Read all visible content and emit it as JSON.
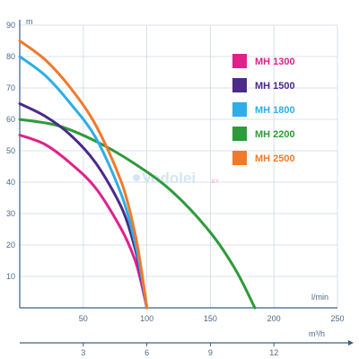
{
  "chart_data": {
    "type": "line",
    "y_unit": "m",
    "x_unit": "l/min",
    "x2_unit": "m³/h",
    "ylim": [
      0,
      90
    ],
    "xlim": [
      0,
      250
    ],
    "x2lim": [
      0,
      15
    ],
    "y_ticks": [
      "10",
      "20",
      "30",
      "40",
      "50",
      "60",
      "70",
      "80",
      "90"
    ],
    "x_ticks": [
      "50",
      "100",
      "150",
      "200",
      "250"
    ],
    "x2_ticks": [
      "3",
      "6",
      "9",
      "12"
    ],
    "grid": true,
    "legend_position": "right",
    "series": [
      {
        "name": "MH 1300",
        "color": "#e0218a",
        "x": [
          0,
          20,
          40,
          60,
          80,
          90,
          95,
          100
        ],
        "y": [
          55,
          52,
          46,
          38,
          25,
          16,
          9,
          0
        ]
      },
      {
        "name": "MH 1500",
        "color": "#4b2a8a",
        "x": [
          0,
          20,
          40,
          60,
          80,
          90,
          95,
          100
        ],
        "y": [
          65,
          61,
          55,
          46,
          32,
          20,
          11,
          0
        ]
      },
      {
        "name": "MH 1800",
        "color": "#2eaee6",
        "x": [
          0,
          20,
          40,
          60,
          80,
          90,
          95,
          100
        ],
        "y": [
          80,
          74,
          65,
          54,
          36,
          22,
          12,
          0
        ]
      },
      {
        "name": "MH 2200",
        "color": "#2e9a3a",
        "x": [
          0,
          30,
          60,
          90,
          120,
          150,
          170,
          185
        ],
        "y": [
          60,
          58,
          53,
          46,
          37,
          24,
          12,
          0
        ]
      },
      {
        "name": "MH 2500",
        "color": "#f07a2a",
        "x": [
          0,
          20,
          40,
          60,
          80,
          90,
          95,
          100
        ],
        "y": [
          85,
          79,
          70,
          58,
          40,
          25,
          14,
          0
        ]
      }
    ]
  },
  "watermark": {
    "main": "Vodolei",
    "suffix": ".BY"
  }
}
